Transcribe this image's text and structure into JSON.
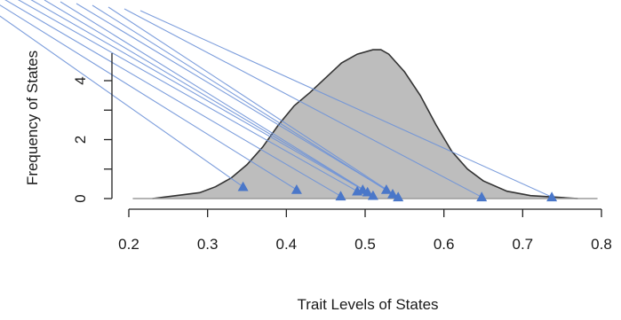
{
  "chart_data": {
    "type": "area",
    "title": "",
    "xlabel": "Trait Levels of States",
    "ylabel": "Frequency of States",
    "xlim": [
      0.2,
      0.8
    ],
    "ylim": [
      0,
      6
    ],
    "x_ticks": [
      0.2,
      0.3,
      0.4,
      0.5,
      0.6,
      0.7,
      0.8
    ],
    "x_tick_labels": [
      "0.2",
      "0.3",
      "0.4",
      "0.5",
      "0.6",
      "0.7",
      "0.8"
    ],
    "y_ticks": [
      0,
      2,
      4
    ],
    "y_tick_labels": [
      "0",
      "2",
      "4"
    ],
    "grid": false,
    "density": {
      "x": [
        0.23,
        0.26,
        0.29,
        0.31,
        0.33,
        0.35,
        0.37,
        0.39,
        0.41,
        0.43,
        0.45,
        0.47,
        0.49,
        0.51,
        0.52,
        0.53,
        0.55,
        0.57,
        0.59,
        0.61,
        0.63,
        0.65,
        0.68,
        0.71,
        0.74,
        0.77
      ],
      "y": [
        0.0,
        0.1,
        0.2,
        0.4,
        0.7,
        1.15,
        1.75,
        2.5,
        3.15,
        3.6,
        4.1,
        4.6,
        4.9,
        5.05,
        5.05,
        4.9,
        4.3,
        3.5,
        2.5,
        1.6,
        1.0,
        0.6,
        0.25,
        0.1,
        0.05,
        0.0
      ],
      "fill": "#bdbdbd",
      "stroke": "#333333"
    },
    "points": {
      "x": [
        0.345,
        0.413,
        0.469,
        0.49,
        0.497,
        0.503,
        0.51,
        0.527,
        0.535,
        0.542,
        0.648,
        0.737
      ],
      "y": [
        0.4,
        0.3,
        0.08,
        0.25,
        0.3,
        0.22,
        0.1,
        0.3,
        0.15,
        0.05,
        0.05,
        0.05
      ],
      "color": "#4a77c9"
    },
    "connector_color": "#6f93d8"
  }
}
